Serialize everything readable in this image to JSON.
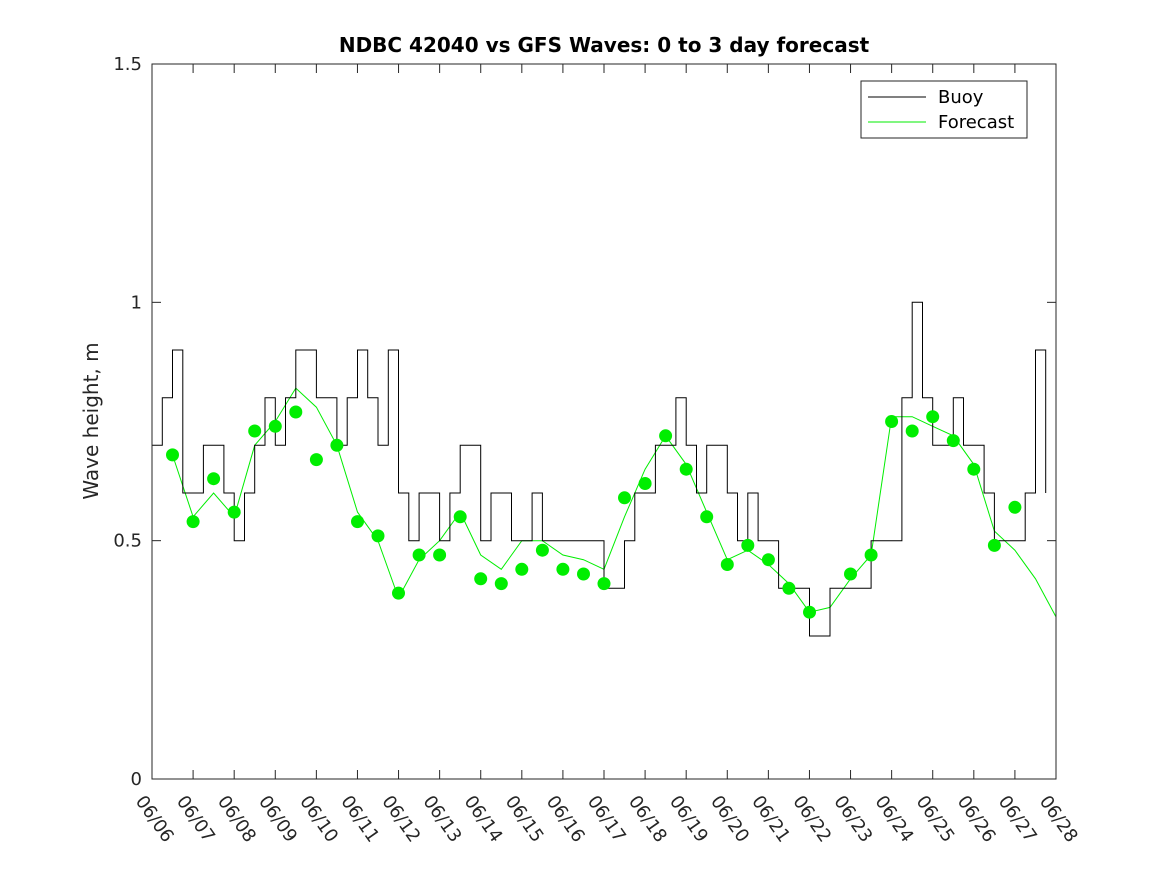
{
  "chart_data": {
    "type": "line",
    "title": "NDBC 42040 vs GFS Waves: 0 to 3 day forecast",
    "xlabel": "",
    "ylabel": "Wave height, m",
    "xlim": [
      "06/06",
      "06/28"
    ],
    "ylim": [
      0,
      1.5
    ],
    "x_tick_labels": [
      "06/06",
      "06/07",
      "06/08",
      "06/09",
      "06/10",
      "06/11",
      "06/12",
      "06/13",
      "06/14",
      "06/15",
      "06/16",
      "06/17",
      "06/18",
      "06/19",
      "06/20",
      "06/21",
      "06/22",
      "06/23",
      "06/24",
      "06/25",
      "06/26",
      "06/27",
      "06/28"
    ],
    "y_ticks": [
      0,
      0.5,
      1,
      1.5
    ],
    "y_tick_labels": [
      "0",
      "0.5",
      "1",
      "1.5"
    ],
    "grid": false,
    "legend_position": "top-right",
    "colors": {
      "buoy": "#000000",
      "forecast": "#00ee00",
      "axis": "#262626"
    },
    "series": [
      {
        "name": "Buoy",
        "style": "line",
        "x": [
          "06/06 00:00",
          "06/06 06:00",
          "06/06 12:00",
          "06/06 18:00",
          "06/07 00:00",
          "06/07 06:00",
          "06/07 12:00",
          "06/07 18:00",
          "06/08 00:00",
          "06/08 06:00",
          "06/08 12:00",
          "06/08 18:00",
          "06/09 00:00",
          "06/09 06:00",
          "06/09 12:00",
          "06/09 18:00",
          "06/10 00:00",
          "06/10 06:00",
          "06/10 12:00",
          "06/10 18:00",
          "06/11 00:00",
          "06/11 06:00",
          "06/11 12:00",
          "06/11 18:00",
          "06/12 00:00",
          "06/12 06:00",
          "06/12 12:00",
          "06/12 18:00",
          "06/13 00:00",
          "06/13 06:00",
          "06/13 12:00",
          "06/13 18:00",
          "06/14 00:00",
          "06/14 06:00",
          "06/14 12:00",
          "06/14 18:00",
          "06/15 00:00",
          "06/15 06:00",
          "06/15 12:00",
          "06/15 18:00",
          "06/16 00:00",
          "06/16 06:00",
          "06/16 12:00",
          "06/16 18:00",
          "06/17 00:00",
          "06/17 06:00",
          "06/17 12:00",
          "06/17 18:00",
          "06/18 00:00",
          "06/18 06:00",
          "06/18 12:00",
          "06/18 18:00",
          "06/19 00:00",
          "06/19 06:00",
          "06/19 12:00",
          "06/19 18:00",
          "06/20 00:00",
          "06/20 06:00",
          "06/20 12:00",
          "06/20 18:00",
          "06/21 00:00",
          "06/21 06:00",
          "06/21 12:00",
          "06/21 18:00",
          "06/22 00:00",
          "06/22 06:00",
          "06/22 12:00",
          "06/22 18:00",
          "06/23 00:00",
          "06/23 06:00",
          "06/23 12:00",
          "06/23 18:00",
          "06/24 00:00",
          "06/24 06:00",
          "06/24 12:00",
          "06/24 18:00",
          "06/25 00:00",
          "06/25 06:00",
          "06/25 12:00",
          "06/25 18:00",
          "06/26 00:00",
          "06/26 06:00",
          "06/26 12:00",
          "06/26 18:00",
          "06/27 00:00",
          "06/27 06:00",
          "06/27 12:00",
          "06/27 18:00"
        ],
        "values": [
          0.7,
          0.8,
          0.9,
          0.6,
          0.6,
          0.7,
          0.7,
          0.6,
          0.5,
          0.6,
          0.7,
          0.8,
          0.7,
          0.8,
          0.9,
          0.9,
          0.8,
          0.8,
          0.7,
          0.8,
          0.9,
          0.8,
          0.7,
          0.9,
          0.6,
          0.5,
          0.6,
          0.6,
          0.5,
          0.6,
          0.7,
          0.7,
          0.5,
          0.6,
          0.6,
          0.5,
          0.5,
          0.6,
          0.5,
          0.5,
          0.5,
          0.5,
          0.5,
          0.5,
          0.4,
          0.4,
          0.5,
          0.6,
          0.6,
          0.7,
          0.7,
          0.8,
          0.7,
          0.6,
          0.7,
          0.7,
          0.6,
          0.5,
          0.6,
          0.5,
          0.5,
          0.4,
          0.4,
          0.4,
          0.3,
          0.3,
          0.4,
          0.4,
          0.4,
          0.4,
          0.5,
          0.5,
          0.5,
          0.8,
          1.0,
          0.8,
          0.7,
          0.7,
          0.8,
          0.7,
          0.7,
          0.6,
          0.5,
          0.5,
          0.5,
          0.6,
          0.9,
          0.6
        ]
      },
      {
        "name": "Forecast",
        "style": "line",
        "x": [
          "06/06 12:00",
          "06/07 00:00",
          "06/07 12:00",
          "06/08 00:00",
          "06/08 12:00",
          "06/09 00:00",
          "06/09 12:00",
          "06/10 00:00",
          "06/10 12:00",
          "06/11 00:00",
          "06/11 12:00",
          "06/12 00:00",
          "06/12 12:00",
          "06/13 00:00",
          "06/13 12:00",
          "06/14 00:00",
          "06/14 12:00",
          "06/15 00:00",
          "06/15 12:00",
          "06/16 00:00",
          "06/16 12:00",
          "06/17 00:00",
          "06/17 12:00",
          "06/18 00:00",
          "06/18 12:00",
          "06/19 00:00",
          "06/19 12:00",
          "06/20 00:00",
          "06/20 12:00",
          "06/21 00:00",
          "06/21 12:00",
          "06/22 00:00",
          "06/22 12:00",
          "06/23 00:00",
          "06/23 12:00",
          "06/24 00:00",
          "06/24 12:00",
          "06/25 00:00",
          "06/25 12:00",
          "06/26 00:00",
          "06/26 12:00",
          "06/27 00:00",
          "06/27 12:00",
          "06/28 00:00"
        ],
        "values": [
          0.68,
          0.55,
          0.6,
          0.55,
          0.7,
          0.75,
          0.82,
          0.78,
          0.7,
          0.56,
          0.5,
          0.38,
          0.46,
          0.5,
          0.56,
          0.47,
          0.44,
          0.5,
          0.5,
          0.47,
          0.46,
          0.44,
          0.55,
          0.65,
          0.72,
          0.66,
          0.56,
          0.46,
          0.48,
          0.45,
          0.41,
          0.35,
          0.36,
          0.42,
          0.47,
          0.76,
          0.76,
          0.74,
          0.72,
          0.66,
          0.52,
          0.48,
          0.42,
          0.34
        ]
      },
      {
        "name": "",
        "style": "markers",
        "x": [
          "06/06 12:00",
          "06/07 00:00",
          "06/07 12:00",
          "06/08 00:00",
          "06/08 12:00",
          "06/09 00:00",
          "06/09 12:00",
          "06/10 00:00",
          "06/10 12:00",
          "06/11 00:00",
          "06/11 12:00",
          "06/12 00:00",
          "06/12 12:00",
          "06/13 00:00",
          "06/13 12:00",
          "06/14 00:00",
          "06/14 12:00",
          "06/15 00:00",
          "06/15 12:00",
          "06/16 00:00",
          "06/16 12:00",
          "06/17 00:00",
          "06/17 12:00",
          "06/18 00:00",
          "06/18 12:00",
          "06/19 00:00",
          "06/19 12:00",
          "06/20 00:00",
          "06/20 12:00",
          "06/21 00:00",
          "06/21 12:00",
          "06/22 00:00",
          "06/23 00:00",
          "06/23 12:00",
          "06/24 00:00",
          "06/24 12:00",
          "06/25 00:00",
          "06/25 12:00",
          "06/26 00:00",
          "06/26 12:00",
          "06/27 00:00"
        ],
        "values": [
          0.68,
          0.54,
          0.63,
          0.56,
          0.73,
          0.74,
          0.77,
          0.67,
          0.7,
          0.54,
          0.51,
          0.39,
          0.47,
          0.47,
          0.55,
          0.42,
          0.41,
          0.44,
          0.48,
          0.44,
          0.43,
          0.41,
          0.59,
          0.62,
          0.72,
          0.65,
          0.55,
          0.45,
          0.49,
          0.46,
          0.4,
          0.35,
          0.43,
          0.47,
          0.75,
          0.73,
          0.76,
          0.71,
          0.65,
          0.49,
          0.57
        ]
      }
    ]
  }
}
